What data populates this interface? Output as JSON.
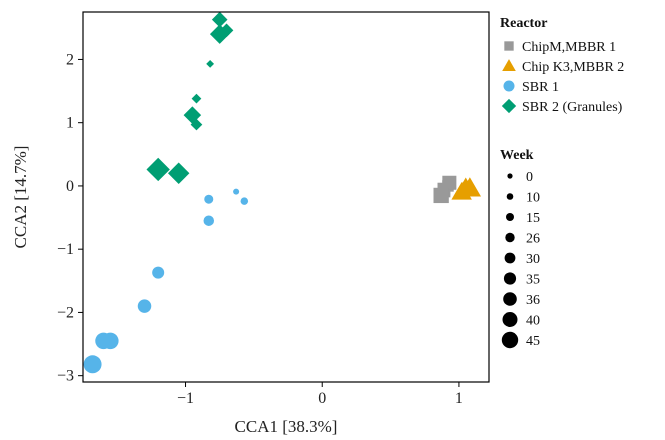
{
  "chart_data": {
    "type": "scatter",
    "title": "",
    "xlabel": "CCA1   [38.3%]",
    "ylabel": "CCA2   [14.7%]",
    "xlim": [
      -1.75,
      1.22
    ],
    "ylim": [
      -3.1,
      2.75
    ],
    "xticks": [
      -1,
      0,
      1
    ],
    "yticks": [
      -3,
      -2,
      -1,
      0,
      1,
      2
    ],
    "xtick_labels": [
      "−1",
      "0",
      "1"
    ],
    "ytick_labels": [
      "−3",
      "−2",
      "−1",
      "0",
      "1",
      "2"
    ],
    "grid": false,
    "legend_reactor": {
      "title": "Reactor",
      "items": [
        {
          "label": "ChipM,MBBR 1",
          "shape": "square",
          "color": "#999999"
        },
        {
          "label": "Chip K3,MBBR 2",
          "shape": "triangle",
          "color": "#E69F00"
        },
        {
          "label": "SBR 1",
          "shape": "circle",
          "color": "#56B4E9"
        },
        {
          "label": "SBR 2 (Granules)",
          "shape": "diamond",
          "color": "#009E73"
        }
      ]
    },
    "legend_week": {
      "title": "Week",
      "items": [
        "0",
        "10",
        "15",
        "26",
        "30",
        "35",
        "36",
        "40",
        "45"
      ]
    },
    "series": [
      {
        "name": "ChipM,MBBR 1",
        "shape": "square",
        "color": "#999999",
        "points": [
          {
            "x": 0.88,
            "y": -0.18,
            "week": 26
          },
          {
            "x": 0.9,
            "y": -0.1,
            "week": 30
          },
          {
            "x": 0.92,
            "y": 0.0,
            "week": 35
          },
          {
            "x": 0.89,
            "y": -0.05,
            "week": 36
          },
          {
            "x": 0.93,
            "y": 0.05,
            "week": 40
          },
          {
            "x": 0.87,
            "y": -0.15,
            "week": 45
          }
        ]
      },
      {
        "name": "Chip K3,MBBR 2",
        "shape": "triangle",
        "color": "#E69F00",
        "points": [
          {
            "x": 1.0,
            "y": -0.12,
            "week": 26
          },
          {
            "x": 1.03,
            "y": -0.05,
            "week": 30
          },
          {
            "x": 1.05,
            "y": 0.0,
            "week": 35
          },
          {
            "x": 1.07,
            "y": -0.06,
            "week": 36
          },
          {
            "x": 1.02,
            "y": -0.1,
            "week": 40
          },
          {
            "x": 1.08,
            "y": -0.04,
            "week": 45
          }
        ]
      },
      {
        "name": "SBR 1",
        "shape": "circle",
        "color": "#56B4E9",
        "points": [
          {
            "x": -0.63,
            "y": -0.09,
            "week": 0
          },
          {
            "x": -0.57,
            "y": -0.24,
            "week": 10
          },
          {
            "x": -0.83,
            "y": -0.21,
            "week": 15
          },
          {
            "x": -0.83,
            "y": -0.55,
            "week": 26
          },
          {
            "x": -1.2,
            "y": -1.37,
            "week": 30
          },
          {
            "x": -1.3,
            "y": -1.9,
            "week": 35
          },
          {
            "x": -1.55,
            "y": -2.45,
            "week": 40
          },
          {
            "x": -1.6,
            "y": -2.45,
            "week": 40
          },
          {
            "x": -1.68,
            "y": -2.82,
            "week": 45
          }
        ]
      },
      {
        "name": "SBR 2 (Granules)",
        "shape": "diamond",
        "color": "#009E73",
        "points": [
          {
            "x": -0.82,
            "y": 1.93,
            "week": 0
          },
          {
            "x": -0.92,
            "y": 1.38,
            "week": 10
          },
          {
            "x": -0.92,
            "y": 0.97,
            "week": 15
          },
          {
            "x": -0.7,
            "y": 2.46,
            "week": 26
          },
          {
            "x": -0.75,
            "y": 2.63,
            "week": 30
          },
          {
            "x": -0.95,
            "y": 1.12,
            "week": 35
          },
          {
            "x": -0.75,
            "y": 2.4,
            "week": 36
          },
          {
            "x": -1.05,
            "y": 0.2,
            "week": 40
          },
          {
            "x": -1.2,
            "y": 0.26,
            "week": 45
          }
        ]
      }
    ]
  }
}
